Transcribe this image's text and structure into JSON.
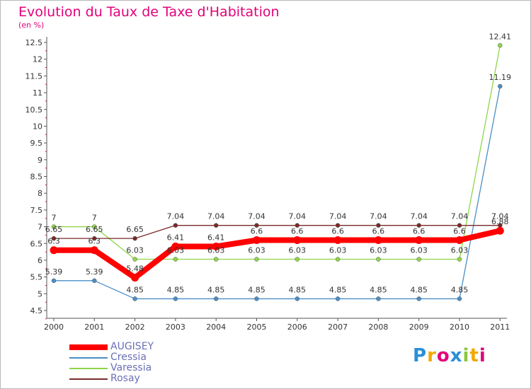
{
  "chart_data": {
    "type": "line",
    "title": "Evolution du Taux de Taxe d'Habitation",
    "ylabel": "(en %)",
    "xlabel": "",
    "categories": [
      "2000",
      "2001",
      "2002",
      "2003",
      "2004",
      "2005",
      "2006",
      "2007",
      "2008",
      "2009",
      "2010",
      "2011"
    ],
    "ylim": [
      4.5,
      12.5
    ],
    "yticks": [
      "4.5",
      "5",
      "5.5",
      "6",
      "6.5",
      "7",
      "7.5",
      "8",
      "8.5",
      "9",
      "9.5",
      "10",
      "10.5",
      "11",
      "11.5",
      "12",
      "12.5"
    ],
    "grid": false,
    "legend_position": "bottom-left",
    "series": [
      {
        "name": "AUGISEY",
        "color": "#ff0000",
        "values": [
          6.3,
          6.3,
          5.48,
          6.41,
          6.41,
          6.6,
          6.6,
          6.6,
          6.6,
          6.6,
          6.6,
          6.88
        ],
        "labels": [
          "6.3",
          "6.3",
          "5.48",
          "6.41",
          "6.41",
          "6.6",
          "6.6",
          "6.6",
          "6.6",
          "6.6",
          "6.6",
          "6.88"
        ]
      },
      {
        "name": "Cressia",
        "color": "#4a8ec6",
        "values": [
          5.39,
          5.39,
          4.85,
          4.85,
          4.85,
          4.85,
          4.85,
          4.85,
          4.85,
          4.85,
          4.85,
          11.19
        ],
        "labels": [
          "5.39",
          "5.39",
          "4.85",
          "4.85",
          "4.85",
          "4.85",
          "4.85",
          "4.85",
          "4.85",
          "4.85",
          "4.85",
          "11.19"
        ]
      },
      {
        "name": "Varessia",
        "color": "#8ed64a",
        "values": [
          7,
          7,
          6.03,
          6.03,
          6.03,
          6.03,
          6.03,
          6.03,
          6.03,
          6.03,
          6.03,
          12.41
        ],
        "labels": [
          "7",
          "7",
          "6.03",
          "6.03",
          "6.03",
          "6.03",
          "6.03",
          "6.03",
          "6.03",
          "6.03",
          "6.03",
          "12.41"
        ]
      },
      {
        "name": "Rosay",
        "color": "#7a2a2a",
        "values": [
          6.65,
          6.65,
          6.65,
          7.04,
          7.04,
          7.04,
          7.04,
          7.04,
          7.04,
          7.04,
          7.04,
          7.04
        ],
        "labels": [
          "6.65",
          "6.65",
          "6.65",
          "7.04",
          "7.04",
          "7.04",
          "7.04",
          "7.04",
          "7.04",
          "7.04",
          "7.04",
          "7.04"
        ]
      }
    ]
  },
  "logo": {
    "text": "Proxiti",
    "letters": [
      "P",
      "r",
      "o",
      "x",
      "i",
      "t",
      "i"
    ],
    "colors": [
      "#2a8fd6",
      "#f2a900",
      "#e2007a",
      "#2a8fd6",
      "#8cc63f",
      "#f2a900",
      "#e2007a"
    ]
  }
}
